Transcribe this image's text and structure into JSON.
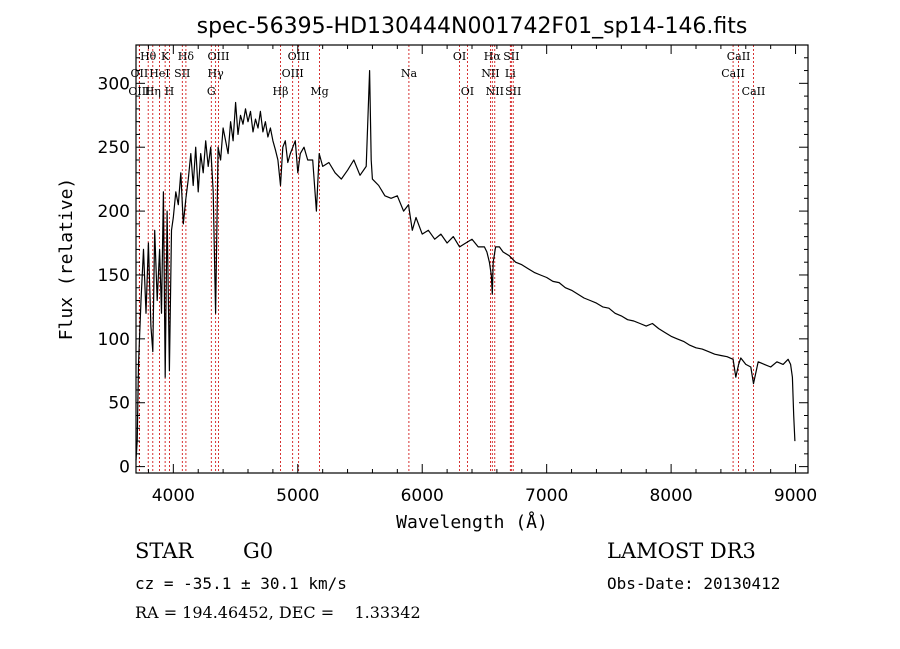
{
  "chart_data": {
    "type": "line",
    "title": "spec-56395-HD130444N001742F01_sp14-146.fits",
    "xlabel": "Wavelength (Å)",
    "ylabel": "Flux (relative)",
    "xlim": [
      3700,
      9100
    ],
    "ylim": [
      -5,
      330
    ],
    "x_ticks": [
      4000,
      5000,
      6000,
      7000,
      8000,
      9000
    ],
    "y_ticks": [
      0,
      50,
      100,
      150,
      200,
      250,
      300
    ],
    "series": [
      {
        "name": "spectrum",
        "x": [
          3700,
          3710,
          3720,
          3740,
          3760,
          3780,
          3800,
          3820,
          3835,
          3850,
          3870,
          3890,
          3905,
          3920,
          3935,
          3950,
          3968,
          3985,
          4000,
          4020,
          4040,
          4060,
          4080,
          4101,
          4120,
          4140,
          4160,
          4180,
          4200,
          4220,
          4240,
          4260,
          4280,
          4300,
          4320,
          4340,
          4360,
          4380,
          4400,
          4420,
          4440,
          4460,
          4480,
          4500,
          4520,
          4540,
          4560,
          4580,
          4600,
          4620,
          4640,
          4660,
          4680,
          4700,
          4720,
          4740,
          4760,
          4780,
          4800,
          4820,
          4840,
          4861,
          4880,
          4900,
          4920,
          4940,
          4960,
          4980,
          5000,
          5020,
          5050,
          5080,
          5120,
          5150,
          5172,
          5200,
          5250,
          5300,
          5350,
          5400,
          5450,
          5500,
          5550,
          5577,
          5590,
          5600,
          5650,
          5700,
          5750,
          5800,
          5850,
          5890,
          5920,
          5950,
          6000,
          6050,
          6100,
          6150,
          6200,
          6250,
          6300,
          6350,
          6400,
          6450,
          6500,
          6520,
          6540,
          6555,
          6563,
          6570,
          6590,
          6620,
          6650,
          6700,
          6750,
          6800,
          6850,
          6900,
          6950,
          7000,
          7050,
          7100,
          7150,
          7200,
          7250,
          7300,
          7350,
          7400,
          7450,
          7500,
          7550,
          7600,
          7650,
          7700,
          7750,
          7800,
          7850,
          7900,
          7950,
          8000,
          8050,
          8100,
          8150,
          8200,
          8250,
          8300,
          8350,
          8400,
          8450,
          8498,
          8520,
          8542,
          8560,
          8600,
          8640,
          8662,
          8700,
          8750,
          8800,
          8850,
          8900,
          8940,
          8960,
          8975,
          8985,
          8995
        ],
        "y": [
          5,
          20,
          80,
          130,
          170,
          120,
          175,
          110,
          90,
          185,
          130,
          170,
          120,
          215,
          70,
          200,
          75,
          185,
          195,
          215,
          205,
          230,
          190,
          210,
          225,
          245,
          220,
          250,
          215,
          245,
          230,
          255,
          235,
          250,
          215,
          120,
          250,
          240,
          265,
          255,
          245,
          270,
          255,
          285,
          260,
          275,
          268,
          280,
          270,
          278,
          262,
          272,
          265,
          278,
          262,
          270,
          258,
          265,
          255,
          248,
          240,
          220,
          250,
          255,
          238,
          245,
          250,
          255,
          230,
          245,
          250,
          240,
          240,
          200,
          245,
          235,
          238,
          230,
          225,
          232,
          240,
          228,
          235,
          310,
          240,
          225,
          220,
          212,
          210,
          212,
          200,
          205,
          185,
          195,
          182,
          185,
          178,
          182,
          175,
          180,
          172,
          175,
          178,
          172,
          172,
          168,
          160,
          150,
          135,
          160,
          172,
          172,
          168,
          165,
          160,
          158,
          155,
          152,
          150,
          148,
          145,
          144,
          140,
          138,
          135,
          132,
          130,
          128,
          125,
          124,
          120,
          118,
          115,
          114,
          112,
          110,
          112,
          108,
          105,
          102,
          100,
          98,
          95,
          93,
          92,
          90,
          88,
          87,
          86,
          84,
          70,
          80,
          85,
          80,
          78,
          65,
          82,
          80,
          78,
          82,
          80,
          84,
          80,
          70,
          40,
          20
        ]
      }
    ],
    "spectral_lines": [
      {
        "label": "Hθ",
        "wavelength": 3798,
        "row": 0
      },
      {
        "label": "OII",
        "wavelength": 3727,
        "row": 1
      },
      {
        "label": "OIII",
        "wavelength": 3727,
        "row": 2
      },
      {
        "label": "K",
        "wavelength": 3934,
        "row": 0
      },
      {
        "label": "HeI",
        "wavelength": 3889,
        "row": 1
      },
      {
        "label": "Hη",
        "wavelength": 3835,
        "row": 2
      },
      {
        "label": "H",
        "wavelength": 3969,
        "row": 2
      },
      {
        "label": "Hδ",
        "wavelength": 4101,
        "row": 0
      },
      {
        "label": "SII",
        "wavelength": 4072,
        "row": 1
      },
      {
        "label": "OIII",
        "wavelength": 4363,
        "row": 0
      },
      {
        "label": "Hγ",
        "wavelength": 4340,
        "row": 1
      },
      {
        "label": "G",
        "wavelength": 4305,
        "row": 2
      },
      {
        "label": "Hβ",
        "wavelength": 4861,
        "row": 2
      },
      {
        "label": "OIII",
        "wavelength": 5007,
        "row": 0
      },
      {
        "label": "OIII",
        "wavelength": 4959,
        "row": 1
      },
      {
        "label": "Mg",
        "wavelength": 5175,
        "row": 2
      },
      {
        "label": "Na",
        "wavelength": 5893,
        "row": 1
      },
      {
        "label": "OI",
        "wavelength": 6300,
        "row": 0
      },
      {
        "label": "OI",
        "wavelength": 6363,
        "row": 2
      },
      {
        "label": "Hα",
        "wavelength": 6563,
        "row": 0
      },
      {
        "label": "NII",
        "wavelength": 6548,
        "row": 1
      },
      {
        "label": "NII",
        "wavelength": 6583,
        "row": 2
      },
      {
        "label": "SII",
        "wavelength": 6716,
        "row": 0
      },
      {
        "label": "Li",
        "wavelength": 6708,
        "row": 1
      },
      {
        "label": "SII",
        "wavelength": 6731,
        "row": 2
      },
      {
        "label": "CaII",
        "wavelength": 8542,
        "row": 0
      },
      {
        "label": "CaII",
        "wavelength": 8498,
        "row": 1
      },
      {
        "label": "CaII",
        "wavelength": 8662,
        "row": 2
      }
    ]
  },
  "info": {
    "object_class": "STAR",
    "subclass": "G0",
    "redshift": "cz = -35.1 ± 30.1 km/s",
    "coords": "RA = 194.46452, DEC =    1.33342",
    "survey": "LAMOST DR3",
    "obs_date": "Obs-Date: 20130412"
  },
  "colors": {
    "spectrum": "#000000",
    "line_marker": "#cc0000"
  }
}
